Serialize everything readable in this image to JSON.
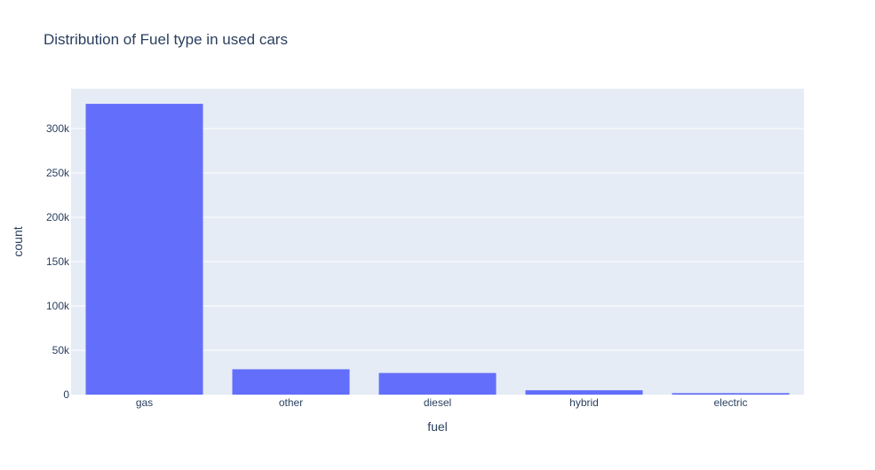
{
  "chart_data": {
    "type": "bar",
    "title": "Distribution of Fuel type in used cars",
    "xlabel": "fuel",
    "ylabel": "count",
    "categories": [
      "gas",
      "other",
      "diesel",
      "hybrid",
      "electric"
    ],
    "values": [
      327900,
      28600,
      24400,
      4900,
      1700
    ],
    "ylim": [
      0,
      345000
    ],
    "yticks": [
      0,
      50000,
      100000,
      150000,
      200000,
      250000,
      300000
    ],
    "ytick_labels": [
      "0",
      "50k",
      "100k",
      "150k",
      "200k",
      "250k",
      "300k"
    ],
    "grid": true,
    "legend": "none",
    "colors": {
      "bar": "#636efa",
      "plot_bg": "#e5ecf6",
      "grid": "#ffffff",
      "text": "#2a3f5f"
    }
  }
}
